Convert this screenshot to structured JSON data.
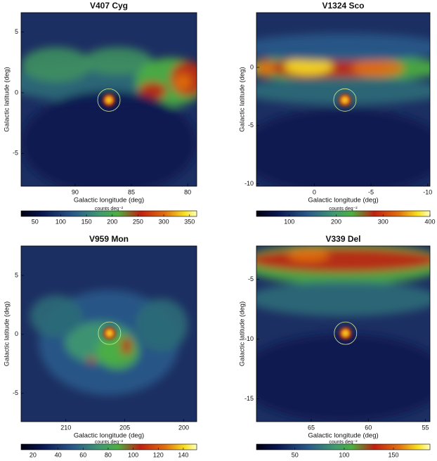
{
  "chart_data": [
    {
      "type": "heatmap",
      "title": "V407 Cyg",
      "xlabel": "Galactic longitude (deg)",
      "ylabel": "Galactic latitude (deg)",
      "xlim": [
        94.8,
        79.2
      ],
      "xticks": [
        90,
        85,
        80
      ],
      "ylim": [
        -7.7,
        6.6
      ],
      "yticks": [
        5,
        0,
        -5
      ],
      "marker": [
        87.0,
        -0.6
      ],
      "colorbar_label": "counts deg⁻²",
      "clim": [
        23,
        364
      ],
      "cticks": [
        50,
        100,
        150,
        200,
        250,
        300,
        350
      ]
    },
    {
      "type": "heatmap",
      "title": "V1324 Sco",
      "xlabel": "Galactic longitude (deg)",
      "ylabel": "Galactic latitude (deg)",
      "xlim": [
        5.1,
        -10.2
      ],
      "xticks": [
        0,
        -5,
        -10
      ],
      "ylim": [
        -10.2,
        4.7
      ],
      "yticks": [
        0,
        -5,
        -10
      ],
      "marker": [
        -2.7,
        -2.8
      ],
      "colorbar_label": "counts deg⁻²",
      "clim": [
        30,
        400
      ],
      "cticks": [
        100,
        200,
        300,
        400
      ]
    },
    {
      "type": "heatmap",
      "title": "V959 Mon",
      "xlabel": "Galactic longitude (deg)",
      "ylabel": "Galactic latitude (deg)",
      "xlim": [
        213.8,
        198.9
      ],
      "xticks": [
        210,
        205,
        200
      ],
      "ylim": [
        -7.4,
        7.5
      ],
      "yticks": [
        5,
        0,
        -5
      ],
      "marker": [
        206.3,
        0.1
      ],
      "colorbar_label": "counts deg⁻²",
      "clim": [
        10.5,
        150.7
      ],
      "cticks": [
        20,
        40,
        60,
        80,
        100,
        120,
        140
      ]
    },
    {
      "type": "heatmap",
      "title": "V339 Del",
      "xlabel": "Galactic longitude (deg)",
      "ylabel": "Galactic latitude (deg)",
      "xlim": [
        69.8,
        54.6
      ],
      "xticks": [
        65,
        60,
        55
      ],
      "ylim": [
        -16.9,
        -2.2
      ],
      "yticks": [
        -5,
        -10,
        -15
      ],
      "marker": [
        62.0,
        -9.5
      ],
      "colorbar_label": "counts deg⁻²",
      "clim": [
        11,
        187
      ],
      "cticks": [
        50,
        100,
        150
      ]
    }
  ]
}
